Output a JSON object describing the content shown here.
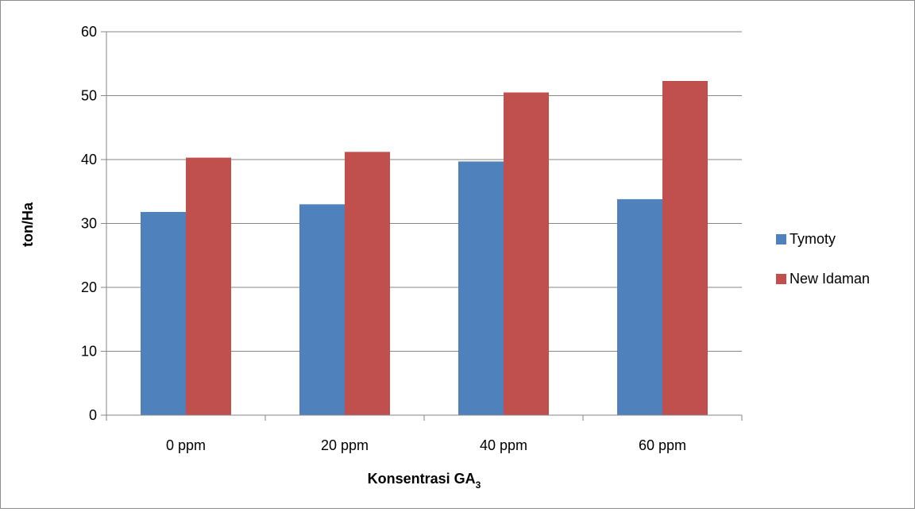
{
  "chart_data": {
    "type": "bar",
    "title": "",
    "xlabel": "Konsentrasi GA",
    "xlabel_subscript": "3",
    "ylabel": "ton/Ha",
    "categories": [
      "0 ppm",
      "20 ppm",
      "40 ppm",
      "60 ppm"
    ],
    "series": [
      {
        "name": "Tymoty",
        "color": "#4f81bd",
        "values": [
          31.8,
          33.0,
          39.7,
          33.8
        ]
      },
      {
        "name": "New Idaman",
        "color": "#c0504d",
        "values": [
          40.3,
          41.2,
          50.5,
          52.3
        ]
      }
    ],
    "ylim": [
      0,
      60
    ],
    "yticks": [
      0,
      10,
      20,
      30,
      40,
      50,
      60
    ],
    "grid": true,
    "legend_position": "right"
  }
}
